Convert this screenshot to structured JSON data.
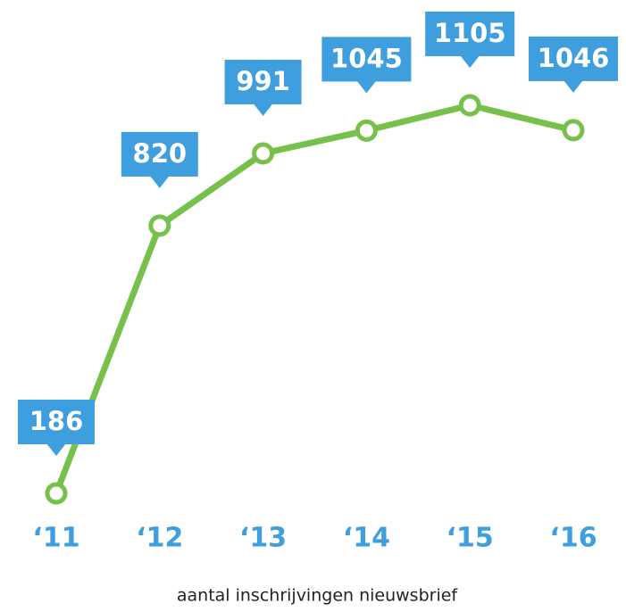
{
  "chart_data": {
    "type": "line",
    "title": "aantal inschrijvingen nieuwsbrief",
    "categories": [
      "‘11",
      "‘12",
      "‘13",
      "‘14",
      "‘15",
      "‘16"
    ],
    "values": [
      186,
      820,
      991,
      1045,
      1105,
      1046
    ],
    "color": "#77c04b",
    "label_color": "#3f9ede"
  }
}
